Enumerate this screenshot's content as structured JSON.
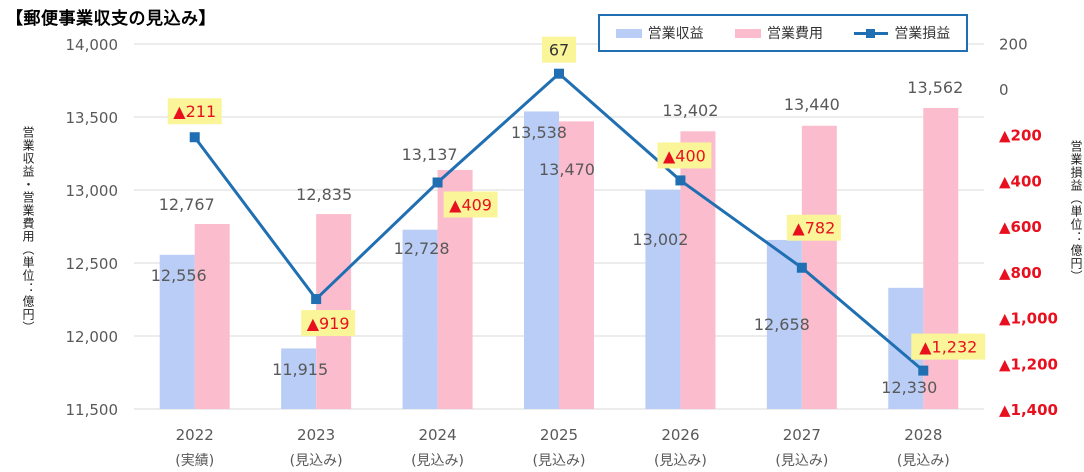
{
  "title": "【郵便事業収支の見込み】",
  "chart_data": {
    "type": "bar",
    "categories": [
      "2022",
      "2023",
      "2024",
      "2025",
      "2026",
      "2027",
      "2028"
    ],
    "category_sublabels": [
      "(実績)",
      "(見込み)",
      "(見込み)",
      "(見込み)",
      "(見込み)",
      "(見込み)",
      "(見込み)"
    ],
    "series": [
      {
        "name": "営業収益",
        "type": "bar",
        "axis": "left",
        "color": "#b9cdf7",
        "values": [
          12556,
          11915,
          12728,
          13538,
          13002,
          12658,
          12330
        ]
      },
      {
        "name": "営業費用",
        "type": "bar",
        "axis": "left",
        "color": "#fbbccd",
        "values": [
          12767,
          12835,
          13137,
          13470,
          13402,
          13440,
          13562
        ]
      },
      {
        "name": "営業損益",
        "type": "line",
        "axis": "right",
        "color": "#1f6fb2",
        "values": [
          -211,
          -919,
          -409,
          67,
          -400,
          -782,
          -1232
        ]
      }
    ],
    "line_labels": [
      "▲211",
      "▲919",
      "▲409",
      "67",
      "▲400",
      "▲782",
      "▲1,232"
    ],
    "bar_labels": {
      "revenue": [
        "12,556",
        "11,915",
        "12,728",
        "13,538",
        "13,002",
        "12,658",
        "12,330"
      ],
      "expense": [
        "12,767",
        "12,835",
        "13,137",
        "13,470",
        "13,402",
        "13,440",
        "13,562"
      ]
    },
    "left_axis": {
      "label": "営業収益・営業費用（単位：億円）",
      "ylim": [
        11500,
        14000
      ],
      "ticks": [
        11500,
        12000,
        12500,
        13000,
        13500,
        14000
      ],
      "tick_labels": [
        "11,500",
        "12,000",
        "12,500",
        "13,000",
        "13,500",
        "14,000"
      ]
    },
    "right_axis": {
      "label": "営業損益（単位：億円）",
      "ylim": [
        -1400,
        200
      ],
      "ticks": [
        200,
        0,
        -200,
        -400,
        -600,
        -800,
        -1000,
        -1200,
        -1400
      ],
      "tick_labels": [
        "200",
        "0",
        "▲200",
        "▲400",
        "▲600",
        "▲800",
        "▲1,000",
        "▲1,200",
        "▲1,400"
      ],
      "negative_color": "#e8101e",
      "positive_color": "#595959"
    },
    "grid": true,
    "legend_position": "top-right",
    "colors": {
      "label_highlight": "#fbf59a",
      "negative_label_text": "#e8101e",
      "positive_label_text": "#333333"
    }
  }
}
